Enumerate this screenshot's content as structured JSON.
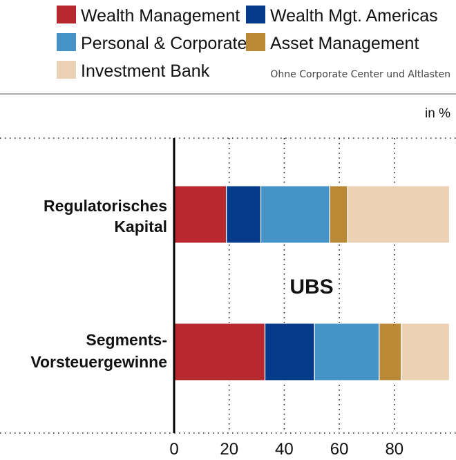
{
  "legend": {
    "items": [
      {
        "label": "Wealth Management",
        "color": "#b8282f"
      },
      {
        "label": "Wealth Mgt. Americas",
        "color": "#033a8a"
      },
      {
        "label": "Personal & Corporate",
        "color": "#4593c7"
      },
      {
        "label": "Asset Management",
        "color": "#b98935"
      },
      {
        "label": "Investment Bank",
        "color": "#ecd2b4"
      }
    ]
  },
  "note": "Ohne Corporate Center und Altlasten",
  "unit": "in %",
  "center_label": "UBS",
  "chart_data": {
    "type": "bar",
    "orientation": "horizontal",
    "stacked": true,
    "categories": [
      "Regulatorisches Kapital",
      "Segments-Vorsteuergewinne"
    ],
    "category_lines": [
      [
        "Regulatorisches",
        "Kapital"
      ],
      [
        "Segments-",
        "Vorsteuergewinne"
      ]
    ],
    "series": [
      {
        "name": "Wealth Management",
        "color": "#b8282f",
        "values": [
          19,
          33
        ]
      },
      {
        "name": "Wealth Mgt. Americas",
        "color": "#033a8a",
        "values": [
          12.5,
          18
        ]
      },
      {
        "name": "Personal & Corporate",
        "color": "#4593c7",
        "values": [
          25,
          23.5
        ]
      },
      {
        "name": "Asset Management",
        "color": "#b98935",
        "values": [
          6.5,
          8
        ]
      },
      {
        "name": "Investment Bank",
        "color": "#ecd2b4",
        "values": [
          37,
          17.5
        ]
      }
    ],
    "xlim": [
      0,
      100
    ],
    "xticks": [
      0,
      20,
      40,
      60,
      80
    ],
    "grid": "vertical-dotted",
    "legend_position": "top"
  }
}
